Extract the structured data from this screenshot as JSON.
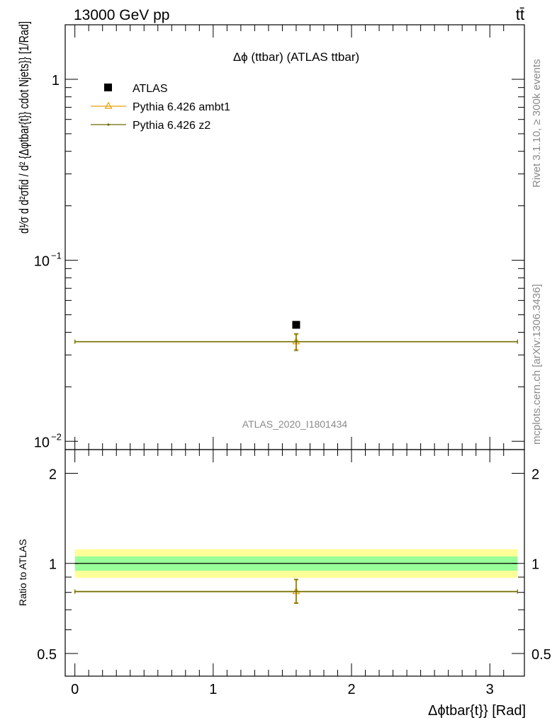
{
  "header": {
    "energy_label": "13000 GeV pp",
    "process_label": "tt̄"
  },
  "side_text": {
    "rivet": "Rivet 3.1.10, ≥ 300k events",
    "source": "mcplots.cern.ch [arXiv:1306.3436]"
  },
  "chart_data": [
    {
      "type": "scatter",
      "panel": "main",
      "title": "Δϕ (ttbar) (ATLAS ttbar)",
      "watermark": "ATLAS_2020_I1801434",
      "ylabel": "d¹⁄σ d d²σfid / d² {Δφtbar{t}} cdot Njets}} [1/Rad]",
      "yscale": "log",
      "ylim": [
        0.009,
        2.0
      ],
      "xlim": [
        -0.07,
        3.25
      ],
      "y_ticks": [
        {
          "value": 1,
          "label": "1"
        },
        {
          "value": 0.1,
          "label": "10",
          "exp": "−1"
        },
        {
          "value": 0.01,
          "label": "10",
          "exp": "−2"
        }
      ],
      "legend_position": "top-left",
      "series": [
        {
          "name": "ATLAS",
          "color": "#000000",
          "marker": "square",
          "points": [
            {
              "x": 1.6,
              "y": 0.044
            }
          ]
        },
        {
          "name": "Pythia 6.426 ambt1",
          "color": "#e8a000",
          "marker": "triangle-open",
          "points": [
            {
              "x": 1.6,
              "y": 0.0355,
              "xerr": [
                0,
                3.2
              ],
              "yerr": [
                0.0033,
                0.0033
              ]
            }
          ]
        },
        {
          "name": "Pythia 6.426 z2",
          "color": "#6b6b00",
          "marker": "dot",
          "points": [
            {
              "x": 1.6,
              "y": 0.0355,
              "xerr": [
                0,
                3.2
              ],
              "yerr": [
                0.0038,
                0.0038
              ]
            }
          ]
        }
      ]
    },
    {
      "type": "scatter",
      "panel": "ratio",
      "ylabel": "Ratio to ATLAS",
      "xlabel": "Δϕtbar{t}} [Rad]",
      "yscale": "log",
      "ylim": [
        0.42,
        2.4
      ],
      "xlim": [
        -0.07,
        3.25
      ],
      "x_ticks": [
        {
          "value": 0,
          "label": "0"
        },
        {
          "value": 1,
          "label": "1"
        },
        {
          "value": 2,
          "label": "2"
        },
        {
          "value": 3,
          "label": "3"
        }
      ],
      "y_ticks": [
        {
          "value": 0.5,
          "label": "0.5"
        },
        {
          "value": 1,
          "label": "1"
        },
        {
          "value": 2,
          "label": "2"
        }
      ],
      "bands": [
        {
          "color": "#ffff99",
          "x": [
            0,
            3.2
          ],
          "low": 0.895,
          "high": 1.115
        },
        {
          "color": "#99ff99",
          "x": [
            0,
            3.2
          ],
          "low": 0.945,
          "high": 1.055
        }
      ],
      "reference_line": 1,
      "series": [
        {
          "name": "Pythia 6.426 ambt1",
          "color": "#e8a000",
          "points": [
            {
              "x": 1.6,
              "y": 0.805,
              "xerr": [
                0,
                3.2
              ],
              "yerr": [
                0.065,
                0.075
              ]
            }
          ]
        },
        {
          "name": "Pythia 6.426 z2",
          "color": "#6b6b00",
          "points": [
            {
              "x": 1.6,
              "y": 0.805,
              "xerr": [
                0,
                3.2
              ],
              "yerr": [
                0.07,
                0.08
              ]
            }
          ]
        }
      ]
    }
  ]
}
